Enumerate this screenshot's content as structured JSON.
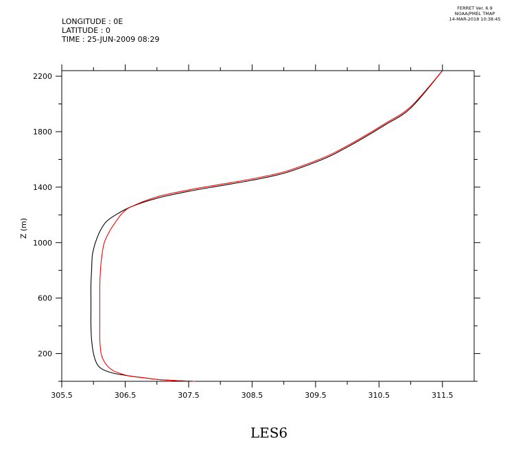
{
  "header": {
    "longitude": "LONGITUDE : 0E",
    "latitude": "LATITUDE : 0",
    "time": "TIME : 25-JUN-2009 08:29"
  },
  "stamp": {
    "line1": "FERRET Ver. 6.9",
    "line2": "NOAA/PMEL TMAP",
    "line3": "14-MAR-2018 10:38:45"
  },
  "chart_data": {
    "type": "line",
    "title": "LES6",
    "xlabel": "",
    "ylabel": "Z (m)",
    "xlim": [
      305.5,
      312.0
    ],
    "ylim": [
      0,
      2240
    ],
    "x_ticks": [
      305.5,
      306.5,
      307.5,
      308.5,
      309.5,
      310.5,
      311.5
    ],
    "x_tick_labels": [
      "305.5",
      "306.5",
      "307.5",
      "308.5",
      "309.5",
      "310.5",
      "311.5"
    ],
    "x_minor_ticks": [
      306.0,
      307.0,
      308.0,
      309.0,
      310.0,
      311.0
    ],
    "y_ticks": [
      200,
      600,
      1000,
      1400,
      1800,
      2200
    ],
    "y_tick_labels": [
      "200",
      "600",
      "1000",
      "1400",
      "1800",
      "2200"
    ],
    "y_minor_ticks": [
      0,
      400,
      800,
      1200,
      1600,
      2000
    ],
    "grid": false,
    "series": [
      {
        "color": "#000000",
        "points": [
          [
            307.6,
            0
          ],
          [
            307.1,
            10
          ],
          [
            306.8,
            25
          ],
          [
            306.55,
            40
          ],
          [
            306.3,
            60
          ],
          [
            306.13,
            90
          ],
          [
            306.05,
            130
          ],
          [
            306.0,
            200
          ],
          [
            305.97,
            300
          ],
          [
            305.96,
            400
          ],
          [
            305.96,
            500
          ],
          [
            305.96,
            600
          ],
          [
            305.96,
            700
          ],
          [
            305.97,
            800
          ],
          [
            305.98,
            900
          ],
          [
            306.0,
            950
          ],
          [
            306.03,
            1000
          ],
          [
            306.1,
            1080
          ],
          [
            306.2,
            1150
          ],
          [
            306.35,
            1200
          ],
          [
            306.6,
            1260
          ],
          [
            307.0,
            1320
          ],
          [
            307.5,
            1370
          ],
          [
            308.0,
            1410
          ],
          [
            308.5,
            1450
          ],
          [
            309.0,
            1500
          ],
          [
            309.5,
            1580
          ],
          [
            309.8,
            1640
          ],
          [
            310.2,
            1740
          ],
          [
            310.6,
            1850
          ],
          [
            311.0,
            1970
          ],
          [
            311.5,
            2240
          ]
        ]
      },
      {
        "color": "#ff0000",
        "points": [
          [
            307.6,
            0
          ],
          [
            307.1,
            10
          ],
          [
            306.8,
            25
          ],
          [
            306.55,
            40
          ],
          [
            306.4,
            60
          ],
          [
            306.3,
            80
          ],
          [
            306.22,
            110
          ],
          [
            306.16,
            150
          ],
          [
            306.12,
            200
          ],
          [
            306.1,
            300
          ],
          [
            306.1,
            400
          ],
          [
            306.1,
            500
          ],
          [
            306.1,
            600
          ],
          [
            306.1,
            700
          ],
          [
            306.11,
            800
          ],
          [
            306.13,
            900
          ],
          [
            306.17,
            1000
          ],
          [
            306.25,
            1080
          ],
          [
            306.35,
            1150
          ],
          [
            306.45,
            1210
          ],
          [
            306.6,
            1260
          ],
          [
            307.0,
            1330
          ],
          [
            307.5,
            1380
          ],
          [
            308.0,
            1420
          ],
          [
            308.5,
            1460
          ],
          [
            309.0,
            1510
          ],
          [
            309.5,
            1590
          ],
          [
            309.8,
            1650
          ],
          [
            310.2,
            1750
          ],
          [
            310.6,
            1860
          ],
          [
            311.0,
            1980
          ],
          [
            311.5,
            2240
          ]
        ]
      }
    ]
  }
}
